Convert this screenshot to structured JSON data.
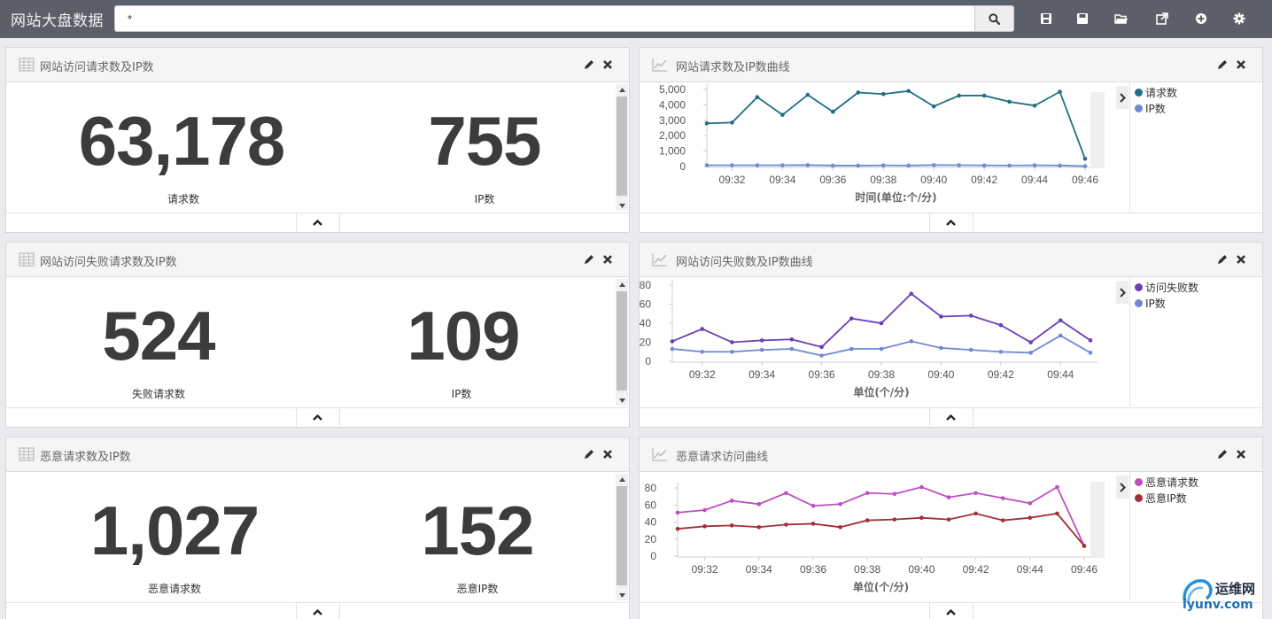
{
  "app": {
    "title": "网站大盘数据",
    "search": {
      "value": "*",
      "placeholder": ""
    }
  },
  "toolbar": {
    "icons": [
      "save-dashboard-icon",
      "save-icon",
      "open-folder-icon",
      "share-icon",
      "add-row-icon",
      "settings-icon"
    ]
  },
  "panels": {
    "requests": {
      "title": "网站访问请求数及IP数",
      "metrics": [
        {
          "value": "63,178",
          "label": "请求数"
        },
        {
          "value": "755",
          "label": "IP数"
        }
      ]
    },
    "failures": {
      "title": "网站访问失败请求数及IP数",
      "metrics": [
        {
          "value": "524",
          "label": "失败请求数"
        },
        {
          "value": "109",
          "label": "IP数"
        }
      ]
    },
    "malicious": {
      "title": "恶意请求数及IP数",
      "metrics": [
        {
          "value": "1,027",
          "label": "恶意请求数"
        },
        {
          "value": "152",
          "label": "恶意IP数"
        }
      ]
    },
    "requests_chart": {
      "title": "网站请求数及IP数曲线"
    },
    "failures_chart": {
      "title": "网站访问失败数及IP数曲线"
    },
    "malicious_chart": {
      "title": "恶意请求访问曲线"
    }
  },
  "chart_data": [
    {
      "id": "requests_chart",
      "type": "line",
      "xlabel": "时间(单位:个/分)",
      "ylabel": "",
      "x": [
        "09:31",
        "09:32",
        "09:33",
        "09:34",
        "09:35",
        "09:36",
        "09:37",
        "09:38",
        "09:39",
        "09:40",
        "09:41",
        "09:42",
        "09:43",
        "09:44",
        "09:45",
        "09:46"
      ],
      "xticks": [
        "09:32",
        "09:34",
        "09:36",
        "09:38",
        "09:40",
        "09:42",
        "09:44",
        "09:46"
      ],
      "yticks": [
        "0",
        "1,000",
        "2,000",
        "3,000",
        "4,000",
        "5,000"
      ],
      "ylim": [
        0,
        5000
      ],
      "series": [
        {
          "name": "请求数",
          "color": "#1f7082",
          "values": [
            2800,
            2850,
            4500,
            3350,
            4650,
            3550,
            4800,
            4700,
            4900,
            3900,
            4600,
            4600,
            4200,
            3950,
            4850,
            500
          ]
        },
        {
          "name": "IP数",
          "color": "#7089d3",
          "values": [
            80,
            80,
            80,
            80,
            90,
            60,
            55,
            70,
            60,
            90,
            85,
            70,
            65,
            80,
            60,
            25
          ]
        }
      ],
      "grid": false,
      "legend": "right"
    },
    {
      "id": "failures_chart",
      "type": "line",
      "xlabel": "单位(个/分)",
      "ylabel": "",
      "x": [
        "09:31",
        "09:32",
        "09:33",
        "09:34",
        "09:35",
        "09:36",
        "09:37",
        "09:38",
        "09:39",
        "09:40",
        "09:41",
        "09:42",
        "09:43",
        "09:44",
        "09:45"
      ],
      "xticks": [
        "09:32",
        "09:34",
        "09:36",
        "09:38",
        "09:40",
        "09:42",
        "09:44"
      ],
      "yticks": [
        "0",
        "20",
        "40",
        "60",
        "80"
      ],
      "ylim": [
        0,
        80
      ],
      "series": [
        {
          "name": "访问失败数",
          "color": "#6a3eb5",
          "values": [
            21,
            34,
            20,
            22,
            23,
            15,
            45,
            40,
            71,
            47,
            48,
            38,
            20,
            43,
            22
          ]
        },
        {
          "name": "IP数",
          "color": "#7089d3",
          "values": [
            13,
            10,
            10,
            12,
            13,
            6,
            13,
            13,
            21,
            14,
            12,
            10,
            9,
            27,
            9
          ]
        }
      ],
      "grid": false,
      "legend": "right"
    },
    {
      "id": "malicious_chart",
      "type": "line",
      "xlabel": "单位(个/分)",
      "ylabel": "",
      "x": [
        "09:31",
        "09:32",
        "09:33",
        "09:34",
        "09:35",
        "09:36",
        "09:37",
        "09:38",
        "09:39",
        "09:40",
        "09:41",
        "09:42",
        "09:43",
        "09:44",
        "09:45",
        "09:46"
      ],
      "xticks": [
        "09:32",
        "09:34",
        "09:36",
        "09:38",
        "09:40",
        "09:42",
        "09:44",
        "09:46"
      ],
      "yticks": [
        "0",
        "20",
        "40",
        "60",
        "80"
      ],
      "ylim": [
        0,
        80
      ],
      "series": [
        {
          "name": "恶意请求数",
          "color": "#c04ec2",
          "values": [
            51,
            54,
            65,
            61,
            74,
            59,
            61,
            74,
            73,
            81,
            69,
            74,
            68,
            62,
            81,
            12
          ]
        },
        {
          "name": "恶意IP数",
          "color": "#a32f36",
          "values": [
            32,
            35,
            36,
            34,
            37,
            38,
            34,
            42,
            43,
            45,
            43,
            50,
            42,
            45,
            50,
            12
          ]
        }
      ],
      "grid": false,
      "legend": "right"
    }
  ],
  "watermark": {
    "line1": "运维网",
    "line2": "iyunv.com"
  }
}
